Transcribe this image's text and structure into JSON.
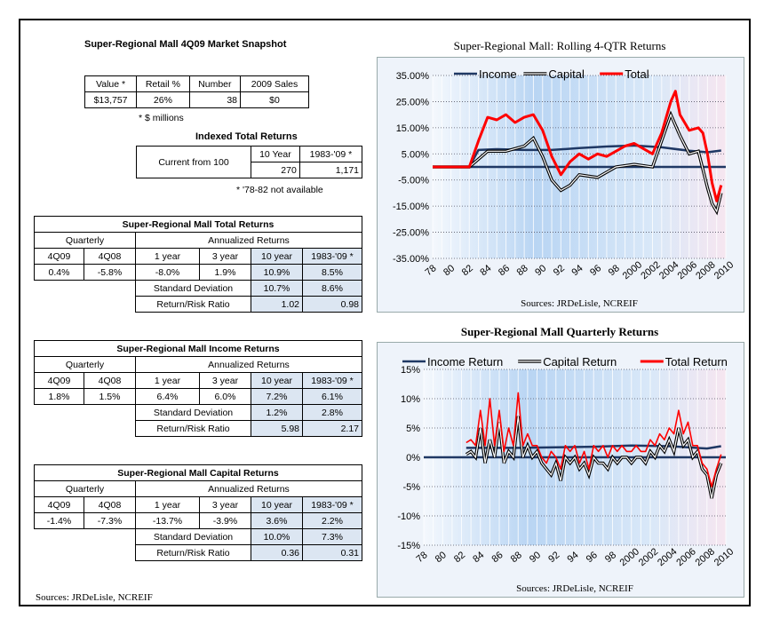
{
  "snapshot": {
    "title": "Super-Regional Mall 4Q09 Market Snapshot",
    "headers": [
      "Value *",
      "Retail %",
      "Number",
      "2009 Sales"
    ],
    "values": [
      "$13,757",
      "26%",
      "38",
      "$0"
    ],
    "note": "* $ millions"
  },
  "indexed": {
    "title": "Indexed Total Returns",
    "row_label": "Current from 100",
    "headers": [
      "10 Year",
      "1983-'09 *"
    ],
    "values": [
      "270",
      "1,171"
    ],
    "note": "* '78-82 not available"
  },
  "total_table": {
    "title": "Super-Regional Mall Total Returns",
    "quarterly_label": "Quarterly",
    "annualized_label": "Annualized Returns",
    "col_headers": [
      "4Q09",
      "4Q08",
      "1 year",
      "3 year",
      "10 year",
      "1983-'09 *"
    ],
    "row_values": [
      "0.4%",
      "-5.8%",
      "-8.0%",
      "1.9%",
      "10.9%",
      "8.5%"
    ],
    "sd_label": "Standard Deviation",
    "sd_values": [
      "10.7%",
      "8.6%"
    ],
    "rr_label": "Return/Risk Ratio",
    "rr_values": [
      "1.02",
      "0.98"
    ]
  },
  "income_table": {
    "title": "Super-Regional Mall Income Returns",
    "quarterly_label": "Quarterly",
    "annualized_label": "Annualized Returns",
    "col_headers": [
      "4Q09",
      "4Q08",
      "1 year",
      "3 year",
      "10 year",
      "1983-'09 *"
    ],
    "row_values": [
      "1.8%",
      "1.5%",
      "6.4%",
      "6.0%",
      "7.2%",
      "6.1%"
    ],
    "sd_label": "Standard Deviation",
    "sd_values": [
      "1.2%",
      "2.8%"
    ],
    "rr_label": "Return/Risk Ratio",
    "rr_values": [
      "5.98",
      "2.17"
    ]
  },
  "capital_table": {
    "title": "Super-Regional Mall Capital Returns",
    "quarterly_label": "Quarterly",
    "annualized_label": "Annualized Returns",
    "col_headers": [
      "4Q09",
      "4Q08",
      "1 year",
      "3 year",
      "10 year",
      "1983-'09 *"
    ],
    "row_values": [
      "-1.4%",
      "-7.3%",
      "-13.7%",
      "-3.9%",
      "3.6%",
      "2.2%"
    ],
    "sd_label": "Standard Deviation",
    "sd_values": [
      "10.0%",
      "7.3%"
    ],
    "rr_label": "Return/Risk Ratio",
    "rr_values": [
      "0.36",
      "0.31"
    ]
  },
  "footer_source": "Sources: JRDeLisle, NCREIF",
  "colors": {
    "income": "#1f3864",
    "capital": "#000000",
    "total": "#ff0000",
    "shade": "#dce6f2"
  },
  "chart_data": [
    {
      "type": "line",
      "title": "Super-Regional Mall:  Rolling 4-QTR Returns",
      "source": "Sources: JRDeLisle, NCREIF",
      "legend_position": "top",
      "ylim": [
        -35,
        35
      ],
      "y_ticks": [
        "35.00%",
        "25.00%",
        "15.00%",
        "5.00%",
        "-5.00%",
        "-15.00%",
        "-25.00%",
        "-35.00%"
      ],
      "y_tick_values": [
        35,
        25,
        15,
        5,
        -5,
        -15,
        -25,
        -35
      ],
      "x_ticks": [
        "78",
        "80",
        "82",
        "84",
        "86",
        "88",
        "90",
        "92",
        "94",
        "96",
        "98",
        "2000",
        "2002",
        "2004",
        "2006",
        "2008",
        "2010"
      ],
      "xlim": [
        1978,
        2010
      ],
      "series": [
        {
          "name": "Income",
          "x": [
            1978,
            1982,
            1983,
            1985,
            1988,
            1991,
            1994,
            1997,
            2000,
            2003,
            2006,
            2008,
            2009.5
          ],
          "values": [
            0,
            0,
            6.5,
            6.8,
            6.5,
            6.5,
            7.2,
            7.8,
            8.2,
            7.5,
            6.2,
            5.6,
            6.3
          ]
        },
        {
          "name": "Capital",
          "x": [
            1978,
            1982,
            1983,
            1984,
            1986,
            1988,
            1989,
            1990,
            1991,
            1992,
            1993,
            1994,
            1996,
            1998,
            2000,
            2002,
            2003,
            2004,
            2005,
            2006,
            2007,
            2008,
            2008.5,
            2009,
            2009.5
          ],
          "values": [
            0,
            0,
            3,
            6,
            6,
            8,
            11,
            4,
            -5,
            -9,
            -7,
            -3,
            -4,
            0,
            1,
            0,
            10,
            20,
            12,
            5,
            6,
            -8,
            -14,
            -17,
            -10
          ]
        },
        {
          "name": "Total",
          "x": [
            1978,
            1982,
            1983,
            1984,
            1985,
            1986,
            1987,
            1988,
            1989,
            1990,
            1991,
            1992,
            1993,
            1994,
            1995,
            1996,
            1997,
            1998,
            1999,
            2000,
            2001,
            2002,
            2003,
            2004,
            2004.5,
            2005,
            2006,
            2007,
            2007.5,
            2008,
            2008.5,
            2009,
            2009.5
          ],
          "values": [
            0,
            0,
            10,
            19,
            18,
            20,
            17,
            19,
            20,
            14,
            4,
            -3,
            2,
            5,
            3,
            5,
            4,
            6,
            8,
            9,
            7,
            5,
            13,
            25,
            29,
            20,
            14,
            15,
            13,
            5,
            -6,
            -13,
            -7
          ]
        }
      ]
    },
    {
      "type": "line",
      "title": "Super-Regional Mall Quarterly Returns",
      "source": "Sources: JRDeLisle, NCREIF",
      "legend_position": "top",
      "ylim": [
        -15,
        15
      ],
      "y_ticks": [
        "15%",
        "10%",
        "5%",
        "0%",
        "-5%",
        "-10%",
        "-15%"
      ],
      "y_tick_values": [
        15,
        10,
        5,
        0,
        -5,
        -10,
        -15
      ],
      "x_ticks": [
        "78",
        "80",
        "82",
        "84",
        "86",
        "88",
        "90",
        "92",
        "94",
        "96",
        "98",
        "2000",
        "2002",
        "2004",
        "2006",
        "2008",
        "2010"
      ],
      "xlim": [
        1978,
        2010
      ],
      "series": [
        {
          "name": "Income Return",
          "x": [
            1982.5,
            1984,
            1988,
            1992,
            1996,
            2000,
            2004,
            2008,
            2009.5
          ],
          "values": [
            1.6,
            1.6,
            1.6,
            1.7,
            1.8,
            2.0,
            1.9,
            1.5,
            1.9
          ]
        },
        {
          "name": "Capital Return",
          "x": [
            1982.5,
            1983,
            1983.5,
            1984,
            1984.5,
            1985,
            1985.5,
            1986,
            1986.5,
            1987,
            1987.5,
            1988,
            1988.5,
            1989,
            1989.5,
            1990,
            1990.5,
            1991,
            1991.5,
            1992,
            1992.5,
            1993,
            1993.5,
            1994,
            1994.5,
            1995,
            1995.5,
            1996,
            1996.5,
            1997,
            1997.5,
            1998,
            1998.5,
            1999,
            1999.5,
            2000,
            2000.5,
            2001,
            2001.5,
            2002,
            2002.5,
            2003,
            2003.5,
            2004,
            2004.5,
            2005,
            2005.5,
            2006,
            2006.5,
            2007,
            2007.5,
            2008,
            2008.5,
            2009,
            2009.5
          ],
          "values": [
            0.5,
            1,
            0,
            5,
            -1,
            3,
            0,
            6,
            -1,
            1,
            0,
            7,
            0,
            2,
            0,
            1,
            -1,
            -2,
            -3,
            -1,
            -4,
            0,
            -1,
            0,
            -2,
            -1,
            -3,
            0,
            -1,
            -1,
            -2,
            0,
            -1,
            0,
            0,
            -1,
            0,
            0,
            -1,
            1,
            0,
            2,
            1,
            3,
            1,
            5,
            2,
            3,
            0,
            1,
            -2,
            -3,
            -7,
            -3,
            -1
          ]
        },
        {
          "name": "Total Return",
          "x": [
            1982.5,
            1983,
            1983.5,
            1984,
            1984.5,
            1985,
            1985.5,
            1986,
            1986.5,
            1987,
            1987.5,
            1988,
            1988.5,
            1989,
            1989.5,
            1990,
            1990.5,
            1991,
            1991.5,
            1992,
            1992.5,
            1993,
            1993.5,
            1994,
            1994.5,
            1995,
            1995.5,
            1996,
            1996.5,
            1997,
            1997.5,
            1998,
            1998.5,
            1999,
            1999.5,
            2000,
            2000.5,
            2001,
            2001.5,
            2002,
            2002.5,
            2003,
            2003.5,
            2004,
            2004.5,
            2005,
            2005.5,
            2006,
            2006.5,
            2007,
            2007.5,
            2008,
            2008.5,
            2009,
            2009.5
          ],
          "values": [
            2.5,
            3,
            2,
            8,
            2,
            10,
            2,
            8,
            1,
            5,
            2,
            11,
            2,
            4,
            2,
            2,
            0,
            -1,
            1,
            0,
            -2,
            2,
            1,
            2,
            -1,
            1,
            -2,
            2,
            1,
            2,
            0,
            2,
            1,
            2,
            1,
            1,
            2,
            1,
            1,
            3,
            2,
            4,
            3,
            5,
            4,
            8,
            4,
            6,
            2,
            2,
            -1,
            -2,
            -5,
            -2,
            0.5
          ]
        }
      ]
    }
  ]
}
